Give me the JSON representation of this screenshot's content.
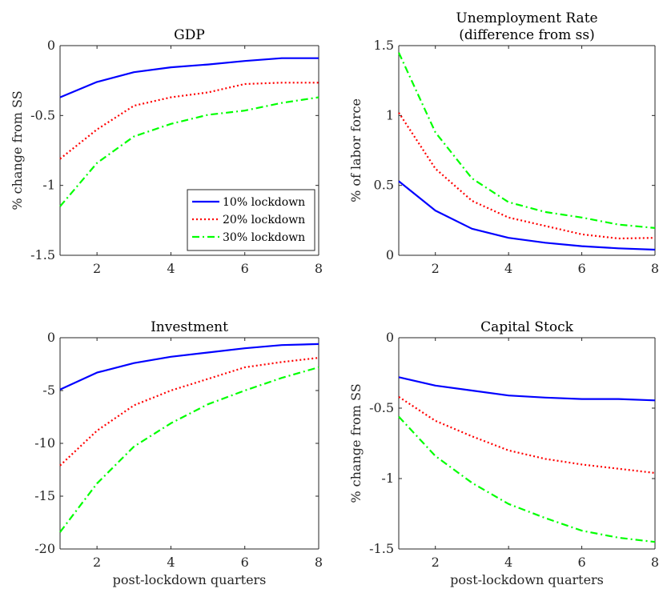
{
  "chart_data": [
    {
      "type": "line",
      "title": [
        "GDP"
      ],
      "xlabel": "",
      "ylabel": "% change from SS",
      "xlim": [
        1,
        8
      ],
      "ylim": [
        -1.5,
        0
      ],
      "xticks": [
        2,
        4,
        6,
        8
      ],
      "xtick_labels": [
        "2",
        "4",
        "6",
        "8"
      ],
      "yticks": [
        0,
        -0.5,
        -1,
        -1.5
      ],
      "ytick_labels": [
        "0",
        "-0.5",
        "-1",
        "-1.5"
      ],
      "legend": {
        "position": "bottom-right",
        "entries": [
          "10% lockdown",
          "20% lockdown",
          "30% lockdown"
        ]
      },
      "series": [
        {
          "name": "10% lockdown",
          "color": "#0000ff",
          "style": "solid",
          "x": [
            1,
            2,
            3,
            4,
            5,
            6,
            7,
            8
          ],
          "values": [
            -0.37,
            -0.26,
            -0.19,
            -0.155,
            -0.135,
            -0.11,
            -0.09,
            -0.09
          ]
        },
        {
          "name": "20% lockdown",
          "color": "#ff0000",
          "style": "dotted",
          "x": [
            1,
            2,
            3,
            4,
            5,
            6,
            7,
            8
          ],
          "values": [
            -0.81,
            -0.6,
            -0.43,
            -0.37,
            -0.335,
            -0.275,
            -0.265,
            -0.265
          ]
        },
        {
          "name": "30% lockdown",
          "color": "#00ff00",
          "style": "dashdot",
          "x": [
            1,
            2,
            3,
            4,
            5,
            6,
            7,
            8
          ],
          "values": [
            -1.15,
            -0.84,
            -0.65,
            -0.56,
            -0.495,
            -0.465,
            -0.41,
            -0.37
          ]
        }
      ]
    },
    {
      "type": "line",
      "title": [
        "Unemployment Rate",
        "(difference from ss)"
      ],
      "xlabel": "",
      "ylabel": "% of labor force",
      "xlim": [
        1,
        8
      ],
      "ylim": [
        0,
        1.5
      ],
      "xticks": [
        2,
        4,
        6,
        8
      ],
      "xtick_labels": [
        "2",
        "4",
        "6",
        "8"
      ],
      "yticks": [
        1.5,
        1,
        0.5,
        0
      ],
      "ytick_labels": [
        "1.5",
        "1",
        "0.5",
        "0"
      ],
      "series": [
        {
          "name": "10% lockdown",
          "color": "#0000ff",
          "style": "solid",
          "x": [
            1,
            2,
            3,
            4,
            5,
            6,
            7,
            8
          ],
          "values": [
            0.53,
            0.32,
            0.19,
            0.125,
            0.09,
            0.065,
            0.05,
            0.04
          ]
        },
        {
          "name": "20% lockdown",
          "color": "#ff0000",
          "style": "dotted",
          "x": [
            1,
            2,
            3,
            4,
            5,
            6,
            7,
            8
          ],
          "values": [
            1.02,
            0.62,
            0.39,
            0.27,
            0.21,
            0.15,
            0.12,
            0.125
          ]
        },
        {
          "name": "30% lockdown",
          "color": "#00ff00",
          "style": "dashdot",
          "x": [
            1,
            2,
            3,
            4,
            5,
            6,
            7,
            8
          ],
          "values": [
            1.45,
            0.88,
            0.55,
            0.38,
            0.31,
            0.27,
            0.22,
            0.195
          ]
        }
      ]
    },
    {
      "type": "line",
      "title": [
        "Investment"
      ],
      "xlabel": "post-lockdown quarters",
      "ylabel": "",
      "xlim": [
        1,
        8
      ],
      "ylim": [
        -20,
        0
      ],
      "xticks": [
        2,
        4,
        6,
        8
      ],
      "xtick_labels": [
        "2",
        "4",
        "6",
        "8"
      ],
      "yticks": [
        0,
        -5,
        -10,
        -15,
        -20
      ],
      "ytick_labels": [
        "0",
        "-5",
        "-10",
        "-15",
        "-20"
      ],
      "series": [
        {
          "name": "10% lockdown",
          "color": "#0000ff",
          "style": "solid",
          "x": [
            1,
            2,
            3,
            4,
            5,
            6,
            7,
            8
          ],
          "values": [
            -4.9,
            -3.3,
            -2.4,
            -1.8,
            -1.4,
            -1.0,
            -0.7,
            -0.6
          ]
        },
        {
          "name": "20% lockdown",
          "color": "#ff0000",
          "style": "dotted",
          "x": [
            1,
            2,
            3,
            4,
            5,
            6,
            7,
            8
          ],
          "values": [
            -12.1,
            -8.8,
            -6.4,
            -5.0,
            -3.9,
            -2.8,
            -2.3,
            -1.9
          ]
        },
        {
          "name": "30% lockdown",
          "color": "#00ff00",
          "style": "dashdot",
          "x": [
            1,
            2,
            3,
            4,
            5,
            6,
            7,
            8
          ],
          "values": [
            -18.4,
            -13.8,
            -10.3,
            -8.1,
            -6.3,
            -5.0,
            -3.8,
            -2.8
          ]
        }
      ]
    },
    {
      "type": "line",
      "title": [
        "Capital Stock"
      ],
      "xlabel": "post-lockdown quarters",
      "ylabel": "% change from SS",
      "xlim": [
        1,
        8
      ],
      "ylim": [
        -1.5,
        0
      ],
      "xticks": [
        2,
        4,
        6,
        8
      ],
      "xtick_labels": [
        "2",
        "4",
        "6",
        "8"
      ],
      "yticks": [
        0,
        -0.5,
        -1,
        -1.5
      ],
      "ytick_labels": [
        "0",
        "-0.5",
        "-1",
        "-1.5"
      ],
      "series": [
        {
          "name": "10% lockdown",
          "color": "#0000ff",
          "style": "solid",
          "x": [
            1,
            2,
            3,
            4,
            5,
            6,
            7,
            8
          ],
          "values": [
            -0.28,
            -0.34,
            -0.375,
            -0.41,
            -0.425,
            -0.435,
            -0.435,
            -0.445
          ]
        },
        {
          "name": "20% lockdown",
          "color": "#ff0000",
          "style": "dotted",
          "x": [
            1,
            2,
            3,
            4,
            5,
            6,
            7,
            8
          ],
          "values": [
            -0.42,
            -0.59,
            -0.7,
            -0.8,
            -0.86,
            -0.9,
            -0.93,
            -0.96
          ]
        },
        {
          "name": "30% lockdown",
          "color": "#00ff00",
          "style": "dashdot",
          "x": [
            1,
            2,
            3,
            4,
            5,
            6,
            7,
            8
          ],
          "values": [
            -0.56,
            -0.84,
            -1.03,
            -1.18,
            -1.28,
            -1.37,
            -1.42,
            -1.45
          ]
        }
      ]
    }
  ]
}
